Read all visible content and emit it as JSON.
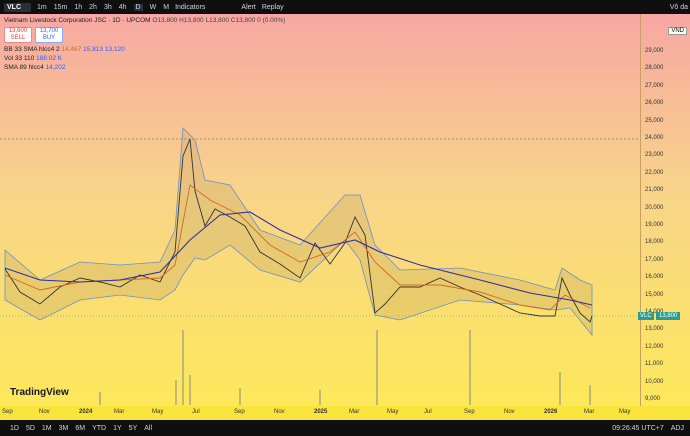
{
  "toolbar": {
    "symbol": "VLC",
    "intervals": [
      "1m",
      "15m",
      "1h",
      "2h",
      "3h",
      "4h",
      "D",
      "W",
      "M"
    ],
    "indicators": "Indicators",
    "alert": "Alert",
    "replay": "Replay",
    "account": "Vô da"
  },
  "legend": {
    "title": "Vietnam Livestock Corporation JSC · 1D · UPCOM",
    "ohlc": "O13,800 H13,800 L13,800 C13,800 0 (0.00%)",
    "sell_price": "13,600",
    "sell": "SELL",
    "buy_price": "13,700",
    "buy": "BUY",
    "bb_label": "BB 33 SMA hlcc4 2",
    "bb_values": [
      "14,467",
      "15,813",
      "13,120"
    ],
    "vol_label": "Vol 33",
    "vol_values": [
      "110",
      "188.02 K"
    ],
    "sma_label": "SMA 89 hlcc4",
    "sma_value": "14,202"
  },
  "price_axis": {
    "unit": "VND",
    "labels": [
      "29,000",
      "28,000",
      "27,000",
      "26,000",
      "25,000",
      "24,000",
      "23,000",
      "22,000",
      "21,000",
      "20,000",
      "19,000",
      "18,000",
      "17,000",
      "16,000",
      "15,000",
      "14,000",
      "13,000",
      "12,000",
      "11,000",
      "10,000",
      "9,000"
    ],
    "last_symbol": "VLC",
    "last_price": "13,800"
  },
  "time_axis": {
    "labels": [
      "Sep",
      "Nov",
      "2024",
      "Mar",
      "May",
      "Jul",
      "Sep",
      "Nov",
      "2025",
      "Mar",
      "May",
      "Jul",
      "Sep",
      "Nov",
      "2026",
      "Mar",
      "May"
    ]
  },
  "logo": "TradingView",
  "footer": {
    "ranges": [
      "1D",
      "5D",
      "1M",
      "3M",
      "6M",
      "YTD",
      "1Y",
      "5Y",
      "All"
    ],
    "time": "09:26:45 UTC+7",
    "adj": "ADJ"
  }
}
